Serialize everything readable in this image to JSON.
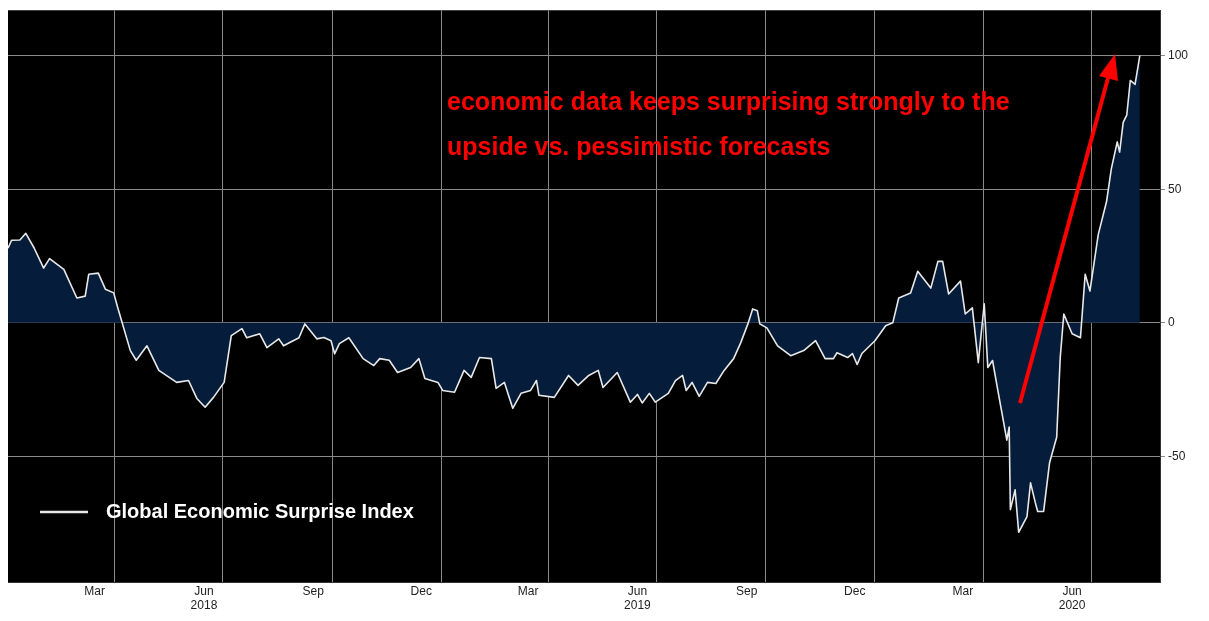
{
  "chart_data": {
    "type": "area",
    "annotations": [
      "economic data keeps surprising strongly to the upside vs. pessimistic forecasts"
    ],
    "xlim": [
      "2018-01-01",
      "2020-08-28"
    ],
    "ylim": [
      -97,
      117
    ],
    "yticks": [
      -50,
      0,
      50,
      100
    ],
    "xticks": [
      {
        "value": "2018-03-15",
        "label": "Mar"
      },
      {
        "value": "2018-04-01",
        "label": null
      },
      {
        "value": "2018-06-15",
        "label": "Jun\n2018"
      },
      {
        "value": "2018-07-01",
        "label": null
      },
      {
        "value": "2018-09-15",
        "label": "Sep"
      },
      {
        "value": "2018-10-01",
        "label": null
      },
      {
        "value": "2018-12-15",
        "label": "Dec"
      },
      {
        "value": "2019-01-01",
        "label": null
      },
      {
        "value": "2019-03-15",
        "label": "Mar"
      },
      {
        "value": "2019-04-01",
        "label": null
      },
      {
        "value": "2019-06-15",
        "label": "Jun\n2019"
      },
      {
        "value": "2019-07-01",
        "label": null
      },
      {
        "value": "2019-09-15",
        "label": "Sep"
      },
      {
        "value": "2019-10-01",
        "label": null
      },
      {
        "value": "2019-12-15",
        "label": "Dec"
      },
      {
        "value": "2020-01-01",
        "label": null
      },
      {
        "value": "2020-03-15",
        "label": "Mar"
      },
      {
        "value": "2020-04-01",
        "label": null
      },
      {
        "value": "2020-06-15",
        "label": "Jun\n2020"
      },
      {
        "value": "2020-07-01",
        "label": null
      }
    ],
    "grid": true,
    "legend": "bottom left",
    "series": [
      {
        "name": "Global Economic Surprise Index",
        "color": "#e8e8e8",
        "x": [
          "2018-01-01",
          "2018-01-04",
          "2018-01-11",
          "2018-01-16",
          "2018-01-23",
          "2018-01-31",
          "2018-02-05",
          "2018-02-17",
          "2018-02-28",
          "2018-03-07",
          "2018-03-10",
          "2018-03-18",
          "2018-03-24",
          "2018-03-31",
          "2018-04-03",
          "2018-04-14",
          "2018-04-19",
          "2018-04-28",
          "2018-05-08",
          "2018-05-23",
          "2018-06-02",
          "2018-06-09",
          "2018-06-16",
          "2018-06-23",
          "2018-07-02",
          "2018-07-08",
          "2018-07-17",
          "2018-07-21",
          "2018-08-01",
          "2018-08-07",
          "2018-08-17",
          "2018-08-21",
          "2018-09-03",
          "2018-09-08",
          "2018-09-18",
          "2018-09-24",
          "2018-09-30",
          "2018-10-03",
          "2018-10-07",
          "2018-10-15",
          "2018-10-27",
          "2018-11-05",
          "2018-11-10",
          "2018-11-18",
          "2018-11-25",
          "2018-12-06",
          "2018-12-13",
          "2018-12-18",
          "2018-12-29",
          "2019-01-02",
          "2019-01-12",
          "2019-01-20",
          "2019-01-26",
          "2019-02-02",
          "2019-02-12",
          "2019-02-16",
          "2019-02-23",
          "2019-03-02",
          "2019-03-09",
          "2019-03-17",
          "2019-03-22",
          "2019-03-24",
          "2019-04-06",
          "2019-04-18",
          "2019-04-26",
          "2019-05-05",
          "2019-05-13",
          "2019-05-17",
          "2019-05-29",
          "2019-06-09",
          "2019-06-15",
          "2019-06-19",
          "2019-06-25",
          "2019-06-30",
          "2019-07-11",
          "2019-07-17",
          "2019-07-23",
          "2019-07-26",
          "2019-07-31",
          "2019-08-06",
          "2019-08-13",
          "2019-08-20",
          "2019-08-27",
          "2019-09-04",
          "2019-09-10",
          "2019-09-16",
          "2019-09-20",
          "2019-09-24",
          "2019-09-26",
          "2019-10-02",
          "2019-10-11",
          "2019-10-22",
          "2019-11-02",
          "2019-11-12",
          "2019-11-20",
          "2019-11-27",
          "2019-11-30",
          "2019-12-09",
          "2019-12-13",
          "2019-12-17",
          "2019-12-21",
          "2020-01-01",
          "2020-01-10",
          "2020-01-16",
          "2020-01-21",
          "2020-01-31",
          "2020-02-06",
          "2020-02-17",
          "2020-02-23",
          "2020-02-27",
          "2020-03-03",
          "2020-03-13",
          "2020-03-17",
          "2020-03-23",
          "2020-03-28",
          "2020-04-02",
          "2020-04-05",
          "2020-04-09",
          "2020-04-13",
          "2020-04-18",
          "2020-04-21",
          "2020-04-23",
          "2020-04-24",
          "2020-04-28",
          "2020-05-01",
          "2020-05-08",
          "2020-05-11",
          "2020-05-15",
          "2020-05-17",
          "2020-05-22",
          "2020-05-27",
          "2020-06-02",
          "2020-06-05",
          "2020-06-08",
          "2020-06-15",
          "2020-06-22",
          "2020-06-26",
          "2020-06-30",
          "2020-07-07",
          "2020-07-14",
          "2020-07-18",
          "2020-07-23",
          "2020-07-25",
          "2020-07-28",
          "2020-07-31",
          "2020-08-03",
          "2020-08-07",
          "2020-08-11"
        ],
        "values": [
          27.9,
          30.9,
          31,
          33.5,
          28,
          20.5,
          24,
          20,
          9.3,
          10,
          18.2,
          18.6,
          12.6,
          11.2,
          6.3,
          -10.4,
          -14,
          -8.6,
          -17.8,
          -22.3,
          -21.6,
          -28.3,
          -31.6,
          -27.9,
          -22.3,
          -4.8,
          -2.2,
          -5.6,
          -4.1,
          -9.3,
          -6,
          -8.6,
          -5.6,
          -0.4,
          -6,
          -5.5,
          -6.7,
          -11.6,
          -7.8,
          -5.6,
          -13.4,
          -16,
          -13.4,
          -14,
          -18.6,
          -16.7,
          -13.4,
          -20.8,
          -22.3,
          -25.3,
          -26,
          -17.8,
          -20.4,
          -13,
          -13.4,
          -24.5,
          -22.3,
          -32,
          -26.4,
          -25.3,
          -21.6,
          -27.1,
          -27.9,
          -19.7,
          -23.4,
          -19.7,
          -17.8,
          -24.2,
          -18.6,
          -29.7,
          -26.8,
          -30,
          -26.4,
          -29.7,
          -26.4,
          -21.6,
          -19.7,
          -25.3,
          -22.3,
          -27.5,
          -22.3,
          -22.7,
          -17.8,
          -13.4,
          -7.4,
          -0.4,
          5.2,
          4.5,
          -0.4,
          -1.9,
          -8.6,
          -12.3,
          -10.4,
          -6.7,
          -13.4,
          -13.4,
          -11.2,
          -13,
          -11.5,
          -15.6,
          -11.5,
          -6.7,
          -1.1,
          0,
          9.3,
          11.2,
          19.3,
          13,
          23,
          23,
          10.8,
          15.6,
          3.3,
          5.6,
          -14.9,
          7.1,
          -16.7,
          -14.1,
          -24.2,
          -36.4,
          -43.9,
          -39,
          -69.9,
          -62.5,
          -78.4,
          -72.5,
          -59.9,
          -67.3,
          -70.6,
          -70.6,
          -52.4,
          -42.8,
          -13,
          3.3,
          -4.1,
          -5.6,
          18.2,
          11.9,
          33,
          45.4,
          57.6,
          67.7,
          63.9,
          75,
          77.7,
          90.7,
          89.2,
          100
        ]
      }
    ]
  }
}
